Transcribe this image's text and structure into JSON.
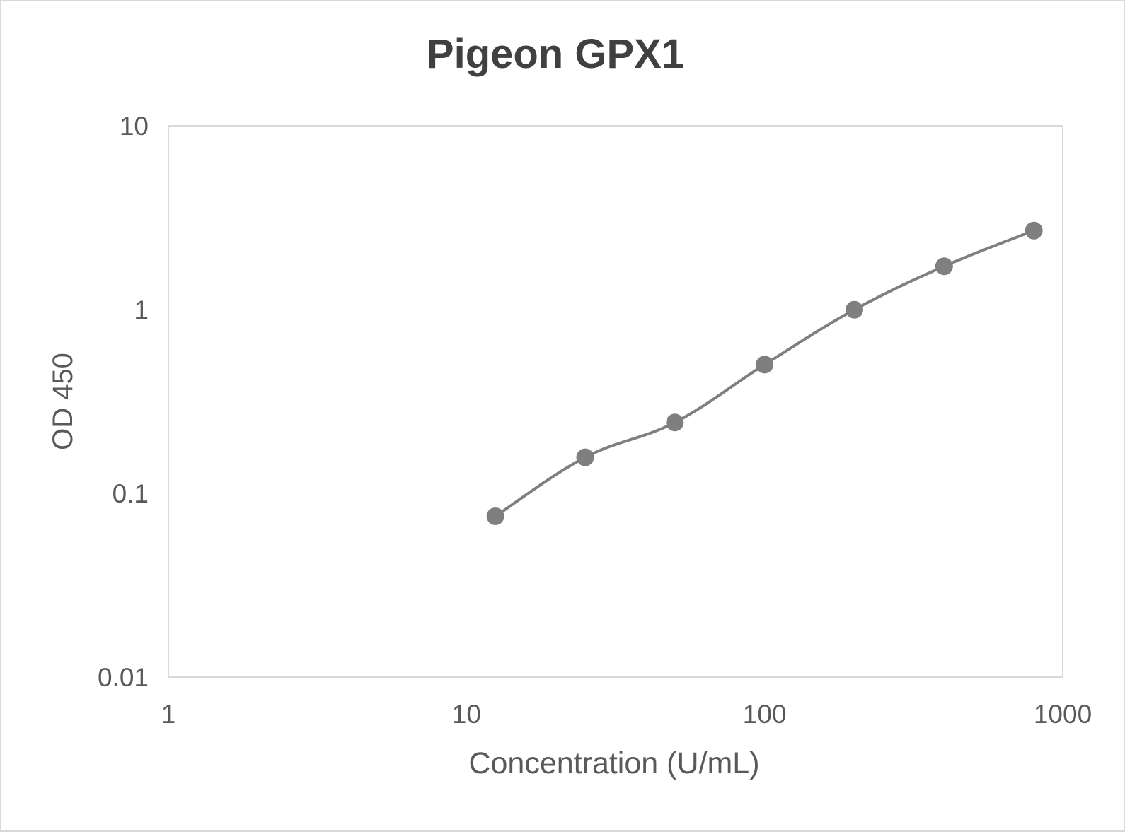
{
  "chart_data": {
    "type": "line",
    "title": "Pigeon GPX1",
    "xlabel": "Concentration (U/mL)",
    "ylabel": "OD 450",
    "x_scale": "log",
    "y_scale": "log",
    "xlim": [
      1,
      1000
    ],
    "ylim": [
      0.01,
      10
    ],
    "x_ticks": [
      "1",
      "10",
      "100",
      "1000"
    ],
    "y_ticks": [
      "0.01",
      "0.1",
      "1",
      "10"
    ],
    "grid": false,
    "legend": "none",
    "series_color": "#7f7f7f",
    "series": [
      {
        "x": [
          12.5,
          25,
          50,
          100,
          200,
          400,
          800
        ],
        "y": [
          0.075,
          0.157,
          0.243,
          0.502,
          0.998,
          1.72,
          2.69
        ]
      }
    ]
  }
}
